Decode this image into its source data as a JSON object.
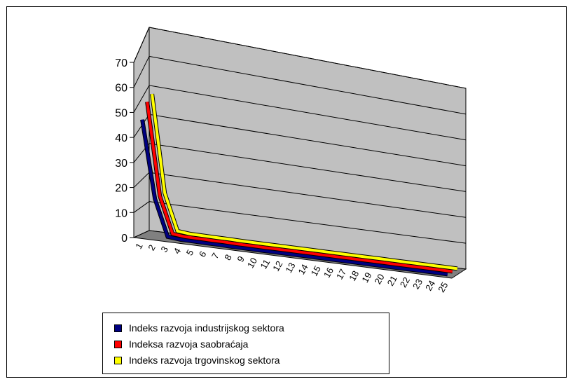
{
  "chart_data": {
    "type": "line",
    "categories": [
      "1",
      "2",
      "3",
      "4",
      "5",
      "6",
      "7",
      "8",
      "9",
      "10",
      "11",
      "12",
      "13",
      "14",
      "15",
      "16",
      "17",
      "18",
      "19",
      "20",
      "21",
      "22",
      "23",
      "24",
      "25"
    ],
    "yticks": [
      "0",
      "10",
      "20",
      "30",
      "40",
      "50",
      "60",
      "70"
    ],
    "ylim": [
      0,
      70
    ],
    "grid": true,
    "legend_position": "bottom",
    "series": [
      {
        "name": "Indeks razvoja industrijskog sektora",
        "color": "#000080",
        "values": [
          47,
          16,
          1.5,
          1.0,
          1.0,
          0.9,
          0.9,
          0.8,
          0.8,
          0.8,
          0.8,
          0.8,
          0.8,
          0.8,
          0.8,
          0.8,
          0.8,
          0.8,
          0.8,
          0.8,
          0.8,
          0.8,
          0.8,
          0.8,
          0.8
        ]
      },
      {
        "name": "Indeksa razvoja saobraćaja",
        "color": "#ff0000",
        "values": [
          53,
          16,
          1.5,
          1.0,
          1.0,
          0.9,
          0.9,
          0.8,
          0.8,
          0.8,
          0.8,
          0.8,
          0.8,
          0.8,
          0.8,
          0.8,
          0.8,
          0.8,
          0.8,
          0.8,
          0.8,
          0.8,
          0.8,
          0.8,
          0.8
        ]
      },
      {
        "name": "Indeks razvoja trgovinskog sektora",
        "color": "#ffff00",
        "values": [
          55,
          16,
          1.5,
          1.0,
          1.0,
          0.9,
          0.9,
          0.8,
          0.8,
          0.8,
          0.8,
          0.8,
          0.8,
          0.8,
          0.8,
          0.8,
          0.8,
          0.8,
          0.8,
          0.8,
          0.8,
          0.8,
          0.8,
          0.8,
          0.8
        ]
      }
    ]
  }
}
